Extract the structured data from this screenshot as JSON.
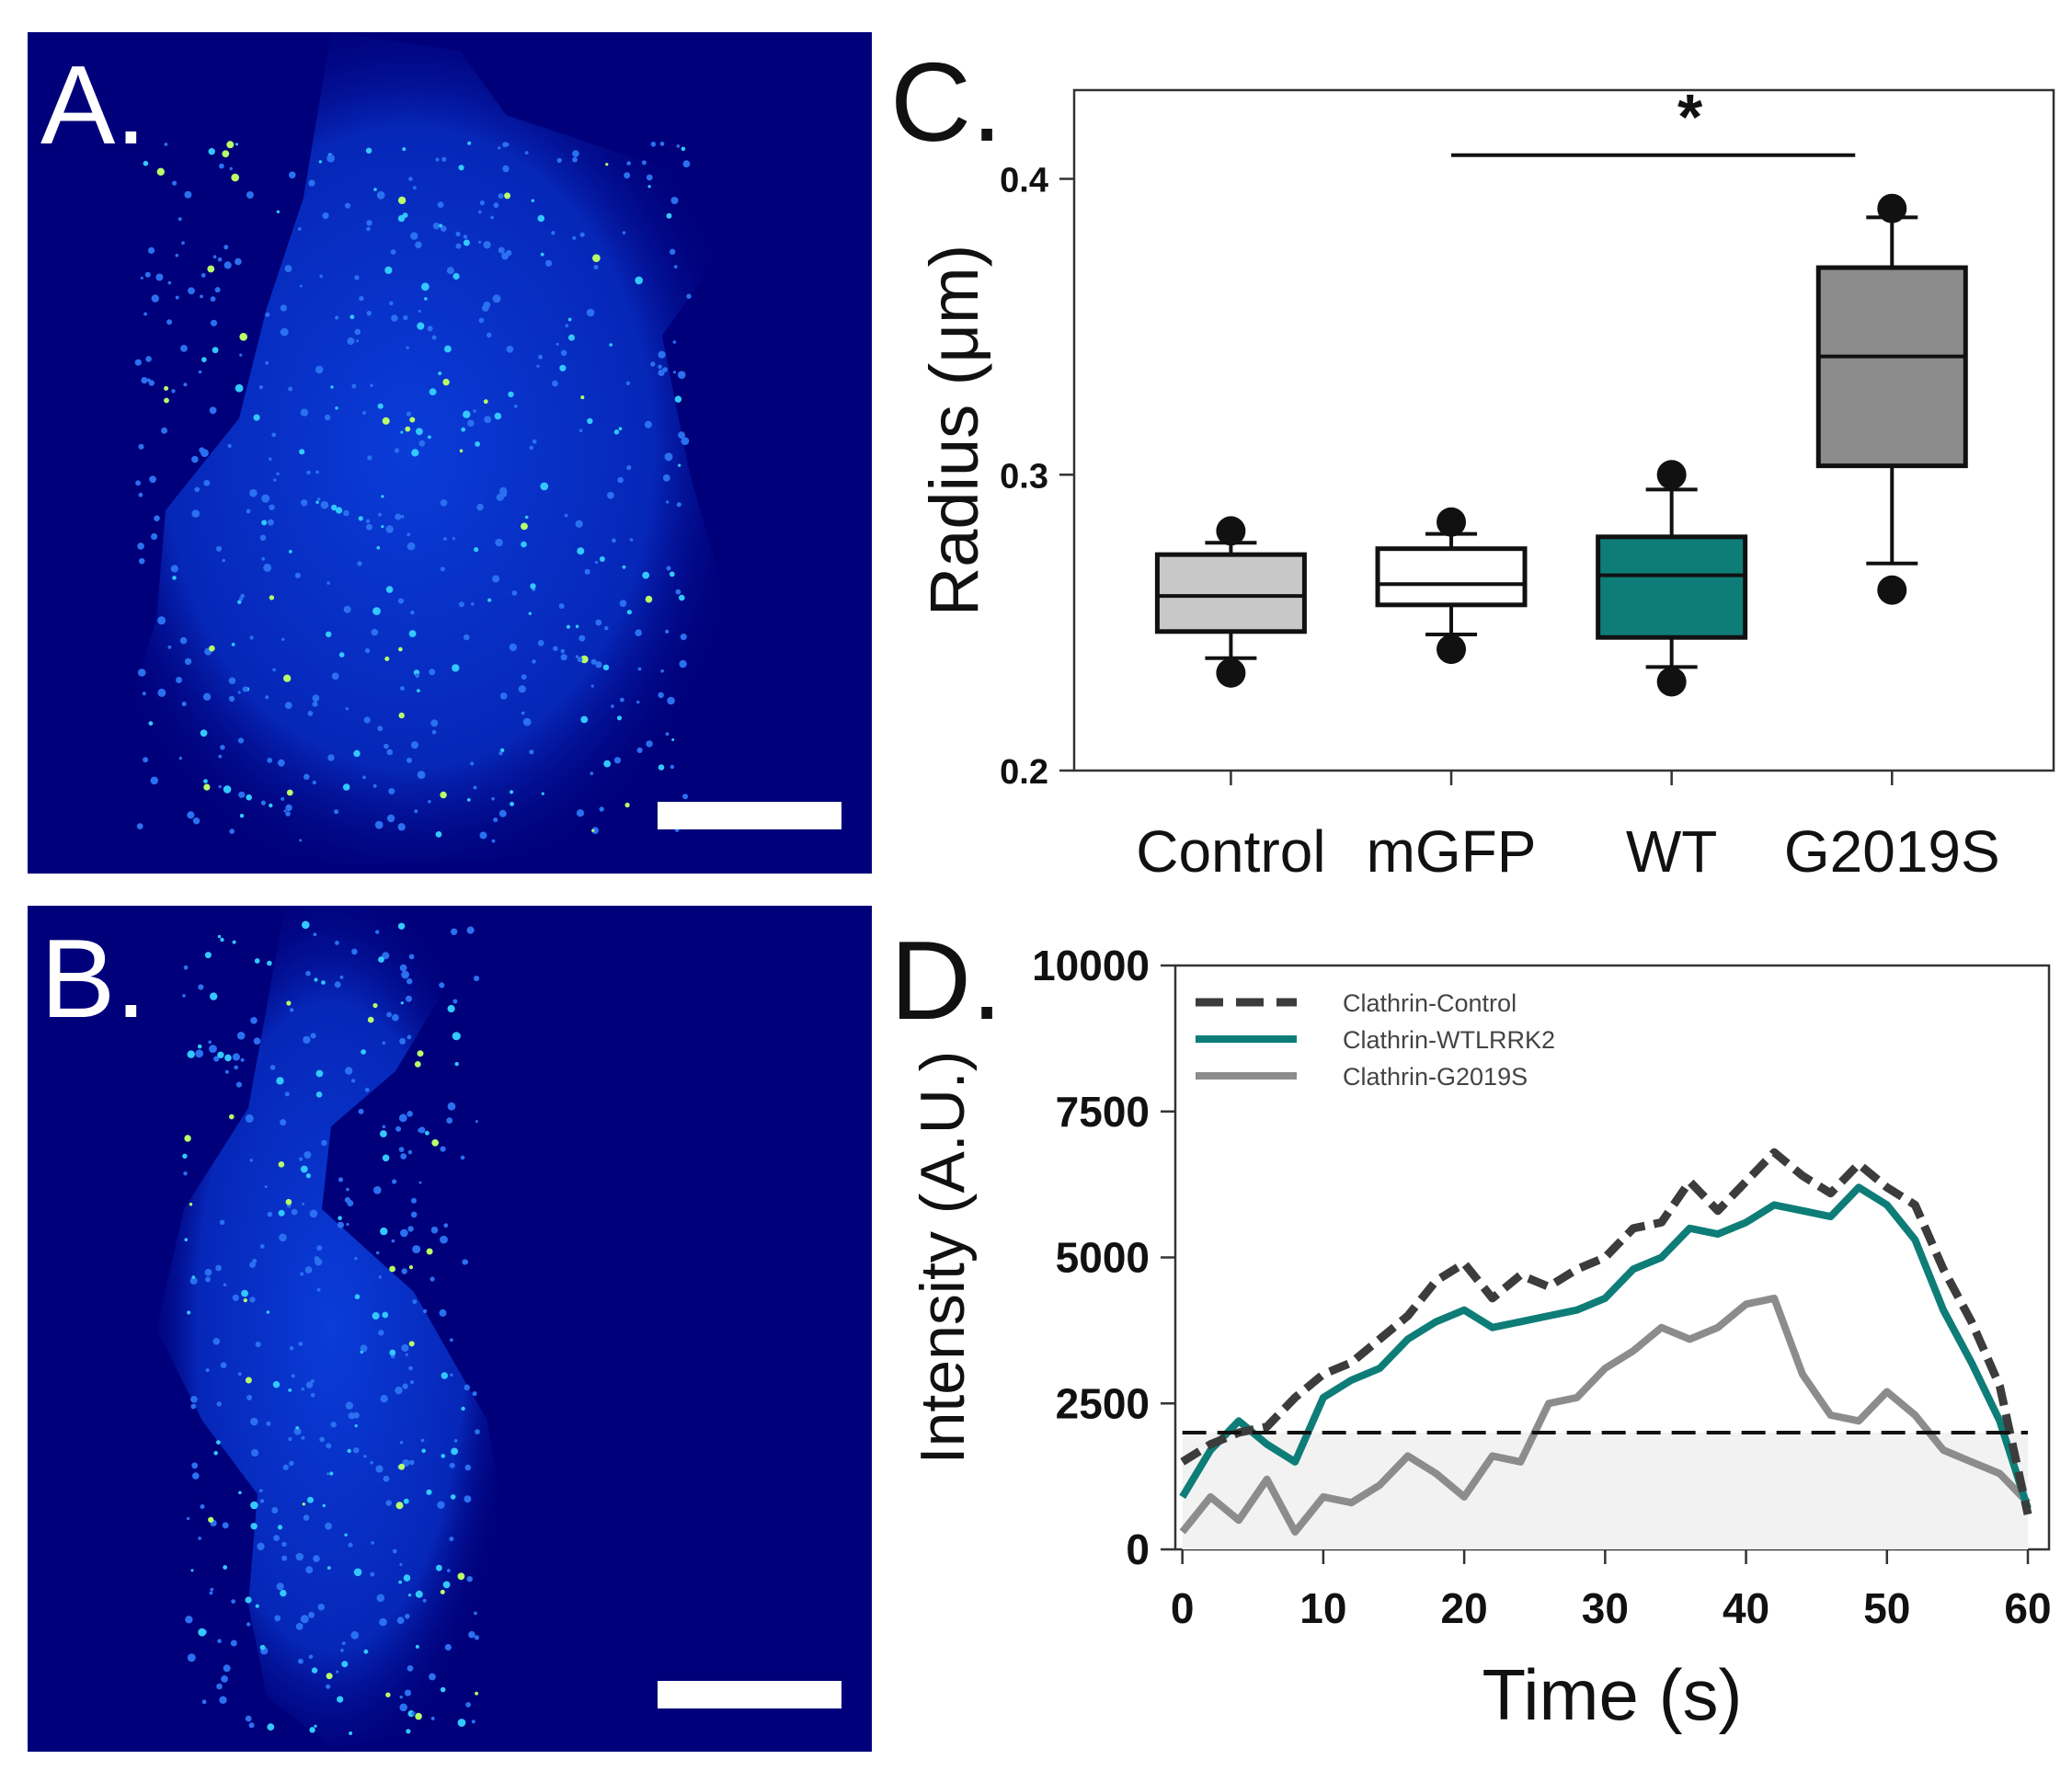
{
  "panels": {
    "a": {
      "letter": "A.",
      "bg_color": "#00007a",
      "scale_bar_color": "#ffffff"
    },
    "b": {
      "letter": "B.",
      "bg_color": "#00007a",
      "scale_bar_color": "#ffffff"
    },
    "c": {
      "letter": "C."
    },
    "d": {
      "letter": "D."
    }
  },
  "chart_data": [
    {
      "type": "box",
      "panel": "C",
      "ylabel": "Radius (μm)",
      "ylim": [
        0.2,
        0.43
      ],
      "yticks": [
        0.2,
        0.3,
        0.4
      ],
      "ytick_labels": [
        "0.2",
        "0.3",
        "0.4"
      ],
      "categories": [
        "Control",
        "mGFP",
        "WT",
        "G2019S"
      ],
      "boxes": [
        {
          "name": "Control",
          "q1": 0.247,
          "median": 0.259,
          "q3": 0.273,
          "whisker_low": 0.238,
          "whisker_high": 0.277,
          "outliers": [
            0.233,
            0.281
          ],
          "color": "#c8c8c8"
        },
        {
          "name": "mGFP",
          "q1": 0.256,
          "median": 0.263,
          "q3": 0.275,
          "whisker_low": 0.246,
          "whisker_high": 0.28,
          "outliers": [
            0.241,
            0.284
          ],
          "color": "#ffffff"
        },
        {
          "name": "WT",
          "q1": 0.245,
          "median": 0.266,
          "q3": 0.279,
          "whisker_low": 0.235,
          "whisker_high": 0.295,
          "outliers": [
            0.23,
            0.3
          ],
          "color": "#0e7d78"
        },
        {
          "name": "G2019S",
          "q1": 0.303,
          "median": 0.34,
          "q3": 0.37,
          "whisker_low": 0.27,
          "whisker_high": 0.387,
          "outliers": [
            0.261,
            0.39
          ],
          "color": "#8c8c8c"
        }
      ],
      "significance": {
        "from": "mGFP",
        "to": "G2019S",
        "y": 0.408,
        "label": "*"
      }
    },
    {
      "type": "line",
      "panel": "D",
      "xlabel": "Time (s)",
      "ylabel": "Intensity (A.U.)",
      "xlim": [
        -0.5,
        61.5
      ],
      "ylim": [
        0,
        10000
      ],
      "xticks": [
        0,
        10,
        20,
        30,
        40,
        50,
        60
      ],
      "yticks": [
        0,
        2500,
        5000,
        7500,
        10000
      ],
      "threshold": 2000,
      "threshold_span": [
        0,
        60
      ],
      "series": [
        {
          "name": "Clathrin-Control",
          "color": "#3c3c3c",
          "style": "dashed",
          "x": [
            0,
            2,
            4,
            6,
            8,
            10,
            12,
            14,
            16,
            18,
            20,
            22,
            24,
            26,
            28,
            30,
            32,
            34,
            36,
            38,
            40,
            42,
            44,
            46,
            48,
            50,
            52,
            54,
            56,
            58,
            60
          ],
          "y": [
            1500,
            1800,
            2000,
            2100,
            2600,
            3000,
            3200,
            3600,
            4000,
            4600,
            4900,
            4300,
            4700,
            4500,
            4800,
            5000,
            5500,
            5600,
            6300,
            5800,
            6300,
            6800,
            6400,
            6100,
            6600,
            6200,
            5900,
            4800,
            3900,
            2800,
            600
          ]
        },
        {
          "name": "Clathrin-WTLRRK2",
          "color": "#0e7d78",
          "style": "solid",
          "x": [
            0,
            2,
            4,
            6,
            8,
            10,
            12,
            14,
            16,
            18,
            20,
            22,
            24,
            26,
            28,
            30,
            32,
            34,
            36,
            38,
            40,
            42,
            44,
            46,
            48,
            50,
            52,
            54,
            56,
            58,
            60
          ],
          "y": [
            900,
            1700,
            2200,
            1800,
            1500,
            2600,
            2900,
            3100,
            3600,
            3900,
            4100,
            3800,
            3900,
            4000,
            4100,
            4300,
            4800,
            5000,
            5500,
            5400,
            5600,
            5900,
            5800,
            5700,
            6200,
            5900,
            5300,
            4100,
            3200,
            2200,
            700
          ]
        },
        {
          "name": "Clathrin-G2019S",
          "color": "#8c8c8c",
          "style": "solid",
          "x": [
            0,
            2,
            4,
            6,
            8,
            10,
            12,
            14,
            16,
            18,
            20,
            22,
            24,
            26,
            28,
            30,
            32,
            34,
            36,
            38,
            40,
            42,
            44,
            46,
            48,
            50,
            52,
            54,
            56,
            58,
            60
          ],
          "y": [
            300,
            900,
            500,
            1200,
            300,
            900,
            800,
            1100,
            1600,
            1300,
            900,
            1600,
            1500,
            2500,
            2600,
            3100,
            3400,
            3800,
            3600,
            3800,
            4200,
            4300,
            3000,
            2300,
            2200,
            2700,
            2300,
            1700,
            1500,
            1300,
            800
          ]
        }
      ],
      "legend_position": "top-left"
    }
  ]
}
